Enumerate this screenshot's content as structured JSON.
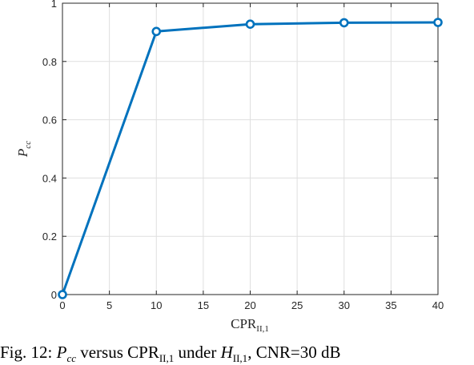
{
  "chart_data": {
    "type": "line",
    "x": [
      0,
      10,
      20,
      30,
      40
    ],
    "series": [
      {
        "values": [
          0.0,
          0.903,
          0.928,
          0.933,
          0.934
        ],
        "color": "#0072bd",
        "marker": "circle"
      }
    ],
    "xlim": [
      0,
      40
    ],
    "ylim": [
      0,
      1
    ],
    "xticks": [
      0,
      5,
      10,
      15,
      20,
      25,
      30,
      35,
      40
    ],
    "yticks": [
      0,
      0.2,
      0.4,
      0.6,
      0.8,
      1
    ],
    "xtick_labels": [
      "0",
      "5",
      "10",
      "15",
      "20",
      "25",
      "30",
      "35",
      "40"
    ],
    "ytick_labels": [
      "0",
      "0.2",
      "0.4",
      "0.6",
      "0.8",
      "1"
    ],
    "xlabel": {
      "main": "CPR",
      "sub": "II,1"
    },
    "ylabel": {
      "main": "P",
      "sub": "cc"
    },
    "grid": true
  },
  "caption": {
    "fig": "Fig. 12:",
    "p": "P",
    "p_sub": "cc",
    "versus": "versus CPR",
    "cpr_sub": "II,1",
    "under": "under",
    "h": "H",
    "h_sub": "II,1",
    "cnr": ", CNR=30 dB"
  }
}
